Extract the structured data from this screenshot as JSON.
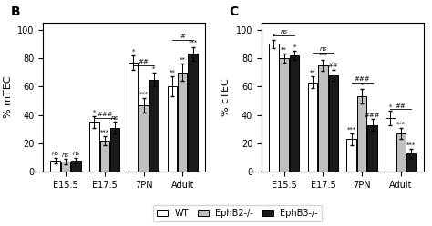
{
  "chart_data": [
    {
      "type": "bar",
      "title": "B",
      "ylabel": "% mTEC",
      "categories": [
        "E15.5",
        "E17.5",
        "7PN",
        "Adult"
      ],
      "series": [
        {
          "name": "WT",
          "color": "#ffffff",
          "values": [
            8,
            35,
            77,
            60
          ],
          "errors": [
            2,
            4,
            5,
            7
          ]
        },
        {
          "name": "EphB2-/-",
          "color": "#c0c0c0",
          "values": [
            7,
            22,
            47,
            70
          ],
          "errors": [
            2,
            3,
            5,
            6
          ]
        },
        {
          "name": "EphB3-/-",
          "color": "#1a1a1a",
          "values": [
            8,
            31,
            65,
            83
          ],
          "errors": [
            2,
            4,
            5,
            5
          ]
        }
      ],
      "ylim": [
        0,
        105
      ],
      "yticks": [
        0,
        20,
        40,
        60,
        80,
        100
      ],
      "annotations": [
        {
          "text": "ns",
          "category": "E15.5",
          "series": "WT"
        },
        {
          "text": "ns",
          "category": "E15.5",
          "series": "EphB2-/-"
        },
        {
          "text": "ns",
          "category": "E15.5",
          "series": "EphB3-/-"
        },
        {
          "text": "*",
          "category": "E17.5",
          "series": "WT"
        },
        {
          "text": "***",
          "category": "E17.5",
          "series": "EphB2-/-"
        },
        {
          "text": "ns",
          "category": "E17.5",
          "series": "EphB3-/-"
        },
        {
          "text": "###",
          "category": "E17.5",
          "y": 38
        },
        {
          "text": "*",
          "category": "7PN",
          "series": "WT"
        },
        {
          "text": "***",
          "category": "7PN",
          "series": "EphB2-/-"
        },
        {
          "text": "*",
          "category": "7PN",
          "series": "EphB3-/-"
        },
        {
          "text": "##",
          "category": "7PN",
          "y": 75
        },
        {
          "text": "**",
          "category": "Adult",
          "series": "WT"
        },
        {
          "text": "**",
          "category": "Adult",
          "series": "EphB2-/-"
        },
        {
          "text": "***",
          "category": "Adult",
          "series": "EphB3-/-"
        },
        {
          "text": "#",
          "category": "Adult",
          "y": 93
        }
      ]
    },
    {
      "type": "bar",
      "title": "C",
      "ylabel": "% cTEC",
      "categories": [
        "E15.5",
        "E17.5",
        "7PN",
        "Adult"
      ],
      "series": [
        {
          "name": "WT",
          "color": "#ffffff",
          "values": [
            90,
            63,
            23,
            38
          ],
          "errors": [
            3,
            4,
            4,
            5
          ]
        },
        {
          "name": "EphB2-/-",
          "color": "#c0c0c0",
          "values": [
            80,
            75,
            53,
            27
          ],
          "errors": [
            3,
            4,
            5,
            4
          ]
        },
        {
          "name": "EphB3-/-",
          "color": "#1a1a1a",
          "values": [
            82,
            68,
            33,
            13
          ],
          "errors": [
            3,
            4,
            4,
            3
          ]
        }
      ],
      "ylim": [
        0,
        105
      ],
      "yticks": [
        0,
        20,
        40,
        60,
        80,
        100
      ],
      "legend": "lower center",
      "annotations": [
        {
          "text": "*",
          "category": "E15.5",
          "series": "WT"
        },
        {
          "text": "**",
          "category": "E15.5",
          "series": "EphB2-/-"
        },
        {
          "text": "*",
          "category": "E15.5",
          "series": "EphB3-/-"
        },
        {
          "text": "ns",
          "category": "E15.5",
          "y": 96
        },
        {
          "text": "**",
          "category": "E17.5",
          "series": "WT"
        },
        {
          "text": "***",
          "category": "E17.5",
          "series": "EphB2-/-"
        },
        {
          "text": "##",
          "category": "E17.5",
          "series": "EphB3-/-"
        },
        {
          "text": "ns",
          "category": "E17.5",
          "y": 84
        },
        {
          "text": "***",
          "category": "7PN",
          "series": "WT"
        },
        {
          "text": "*",
          "category": "7PN",
          "series": "EphB2-/-"
        },
        {
          "text": "###",
          "category": "7PN",
          "series": "EphB3-/-"
        },
        {
          "text": "###",
          "category": "7PN",
          "y": 63
        },
        {
          "text": "*",
          "category": "Adult",
          "series": "WT"
        },
        {
          "text": "***",
          "category": "Adult",
          "series": "EphB2-/-"
        },
        {
          "text": "***",
          "category": "Adult",
          "series": "EphB3-/-"
        },
        {
          "text": "##",
          "category": "Adult",
          "y": 44
        }
      ]
    }
  ]
}
